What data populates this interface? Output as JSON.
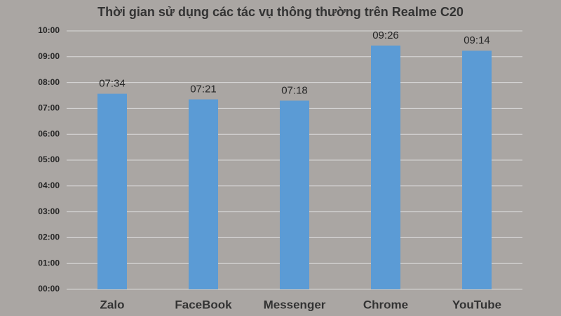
{
  "chart_data": {
    "type": "bar",
    "title": "Thời gian sử dụng các tác vụ thông thường trên Realme C20",
    "categories": [
      "Zalo",
      "FaceBook",
      "Messenger",
      "Chrome",
      "YouTube"
    ],
    "values": [
      454,
      441,
      438,
      566,
      554
    ],
    "value_labels": [
      "07:34",
      "07:21",
      "07:18",
      "09:26",
      "09:14"
    ],
    "color": "#5b9bd5",
    "ylim": [
      0,
      600
    ],
    "yticks": [
      {
        "value": 0,
        "label": "00:00"
      },
      {
        "value": 60,
        "label": "01:00"
      },
      {
        "value": 120,
        "label": "02:00"
      },
      {
        "value": 180,
        "label": "03:00"
      },
      {
        "value": 240,
        "label": "04:00"
      },
      {
        "value": 300,
        "label": "05:00"
      },
      {
        "value": 360,
        "label": "06:00"
      },
      {
        "value": 420,
        "label": "07:00"
      },
      {
        "value": 480,
        "label": "08:00"
      },
      {
        "value": 540,
        "label": "09:00"
      },
      {
        "value": 600,
        "label": "10:00"
      }
    ],
    "grid": true
  }
}
